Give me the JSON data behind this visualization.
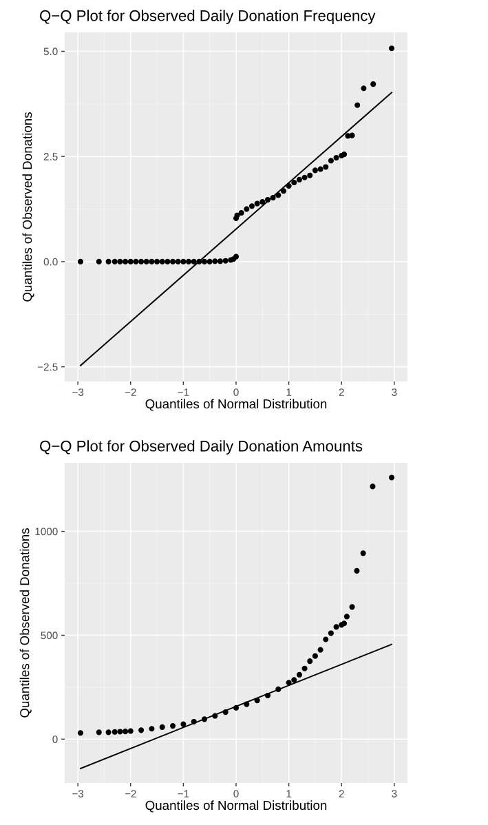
{
  "chart_data": [
    {
      "type": "scatter",
      "title": "Q−Q Plot for Observed Daily Donation Frequency",
      "xlabel": "Quantiles of Normal Distribution",
      "ylabel": "Quantiles of Observed Donations",
      "xlim": [
        -3.25,
        3.25
      ],
      "ylim": [
        -2.85,
        5.45
      ],
      "xticks": [
        {
          "value": -3,
          "label": "−3"
        },
        {
          "value": -2,
          "label": "−2"
        },
        {
          "value": -1,
          "label": "−1"
        },
        0,
        1,
        2,
        3
      ],
      "yticks": [
        {
          "value": -2.5,
          "label": "−2.5"
        },
        {
          "value": 0,
          "label": "0.0"
        },
        2.5,
        {
          "value": 5,
          "label": "5.0"
        }
      ],
      "grid": true,
      "legend": false,
      "series": [
        {
          "marker": "circle",
          "color": "#000000",
          "x": [
            -2.95,
            -2.6,
            -2.42,
            -2.3,
            -2.2,
            -2.1,
            -2.0,
            -1.9,
            -1.8,
            -1.7,
            -1.6,
            -1.5,
            -1.4,
            -1.3,
            -1.2,
            -1.1,
            -1.0,
            -0.9,
            -0.8,
            -0.7,
            -0.6,
            -0.5,
            -0.4,
            -0.3,
            -0.2,
            -0.1,
            -0.05,
            0.0,
            0.0,
            0.02,
            0.1,
            0.2,
            0.3,
            0.4,
            0.5,
            0.6,
            0.7,
            0.8,
            0.9,
            1.0,
            1.1,
            1.2,
            1.3,
            1.4,
            1.5,
            1.6,
            1.7,
            1.8,
            1.9,
            2.0,
            2.05,
            2.12,
            2.2,
            2.3,
            2.42,
            2.6,
            2.95
          ],
          "values": [
            0.0,
            0.0,
            0.0,
            0.0,
            0.0,
            0.0,
            0.0,
            0.0,
            0.0,
            0.0,
            0.0,
            0.0,
            0.0,
            0.0,
            0.0,
            0.0,
            0.0,
            0.0,
            0.0,
            0.0,
            0.0,
            0.0,
            0.01,
            0.01,
            0.02,
            0.04,
            0.06,
            0.12,
            1.03,
            1.1,
            1.16,
            1.25,
            1.32,
            1.38,
            1.42,
            1.47,
            1.52,
            1.58,
            1.68,
            1.8,
            1.88,
            1.95,
            2.0,
            2.05,
            2.17,
            2.2,
            2.25,
            2.4,
            2.47,
            2.52,
            2.55,
            2.99,
            3.0,
            3.72,
            4.12,
            4.22,
            5.07
          ]
        },
        {
          "type": "line",
          "color": "#000000",
          "line_style": "solid",
          "marker": "none",
          "x": [
            -2.95,
            2.95
          ],
          "values": [
            -2.47,
            4.02
          ]
        }
      ]
    },
    {
      "type": "scatter",
      "title": "Q−Q Plot for Observed Daily Donation Amounts",
      "xlabel": "Quantiles of Normal Distribution",
      "ylabel": "Quantiles of Observed Donations",
      "xlim": [
        -3.25,
        3.25
      ],
      "ylim": [
        -211,
        1330
      ],
      "xticks": [
        {
          "value": -3,
          "label": "−3"
        },
        {
          "value": -2,
          "label": "−2"
        },
        {
          "value": -1,
          "label": "−1"
        },
        0,
        1,
        2,
        3
      ],
      "yticks": [
        0,
        500,
        1000
      ],
      "grid": true,
      "legend": false,
      "series": [
        {
          "marker": "circle",
          "color": "#000000",
          "x": [
            -2.95,
            -2.6,
            -2.42,
            -2.3,
            -2.2,
            -2.1,
            -2.0,
            -1.8,
            -1.6,
            -1.4,
            -1.2,
            -1.0,
            -0.8,
            -0.6,
            -0.4,
            -0.2,
            0.0,
            0.2,
            0.4,
            0.6,
            0.8,
            1.0,
            1.1,
            1.2,
            1.3,
            1.4,
            1.5,
            1.6,
            1.7,
            1.8,
            1.9,
            2.0,
            2.05,
            2.1,
            2.2,
            2.29,
            2.41,
            2.59,
            2.95
          ],
          "values": [
            30,
            33,
            33,
            35,
            36,
            37,
            39,
            43,
            50,
            58,
            64,
            72,
            84,
            96,
            112,
            130,
            151,
            168,
            186,
            210,
            240,
            272,
            285,
            310,
            340,
            375,
            400,
            430,
            480,
            510,
            540,
            550,
            557,
            590,
            636,
            810,
            895,
            1216,
            1259
          ]
        },
        {
          "type": "line",
          "color": "#000000",
          "line_style": "solid",
          "marker": "none",
          "x": [
            -2.95,
            2.95
          ],
          "values": [
            -141,
            456
          ]
        }
      ]
    }
  ]
}
